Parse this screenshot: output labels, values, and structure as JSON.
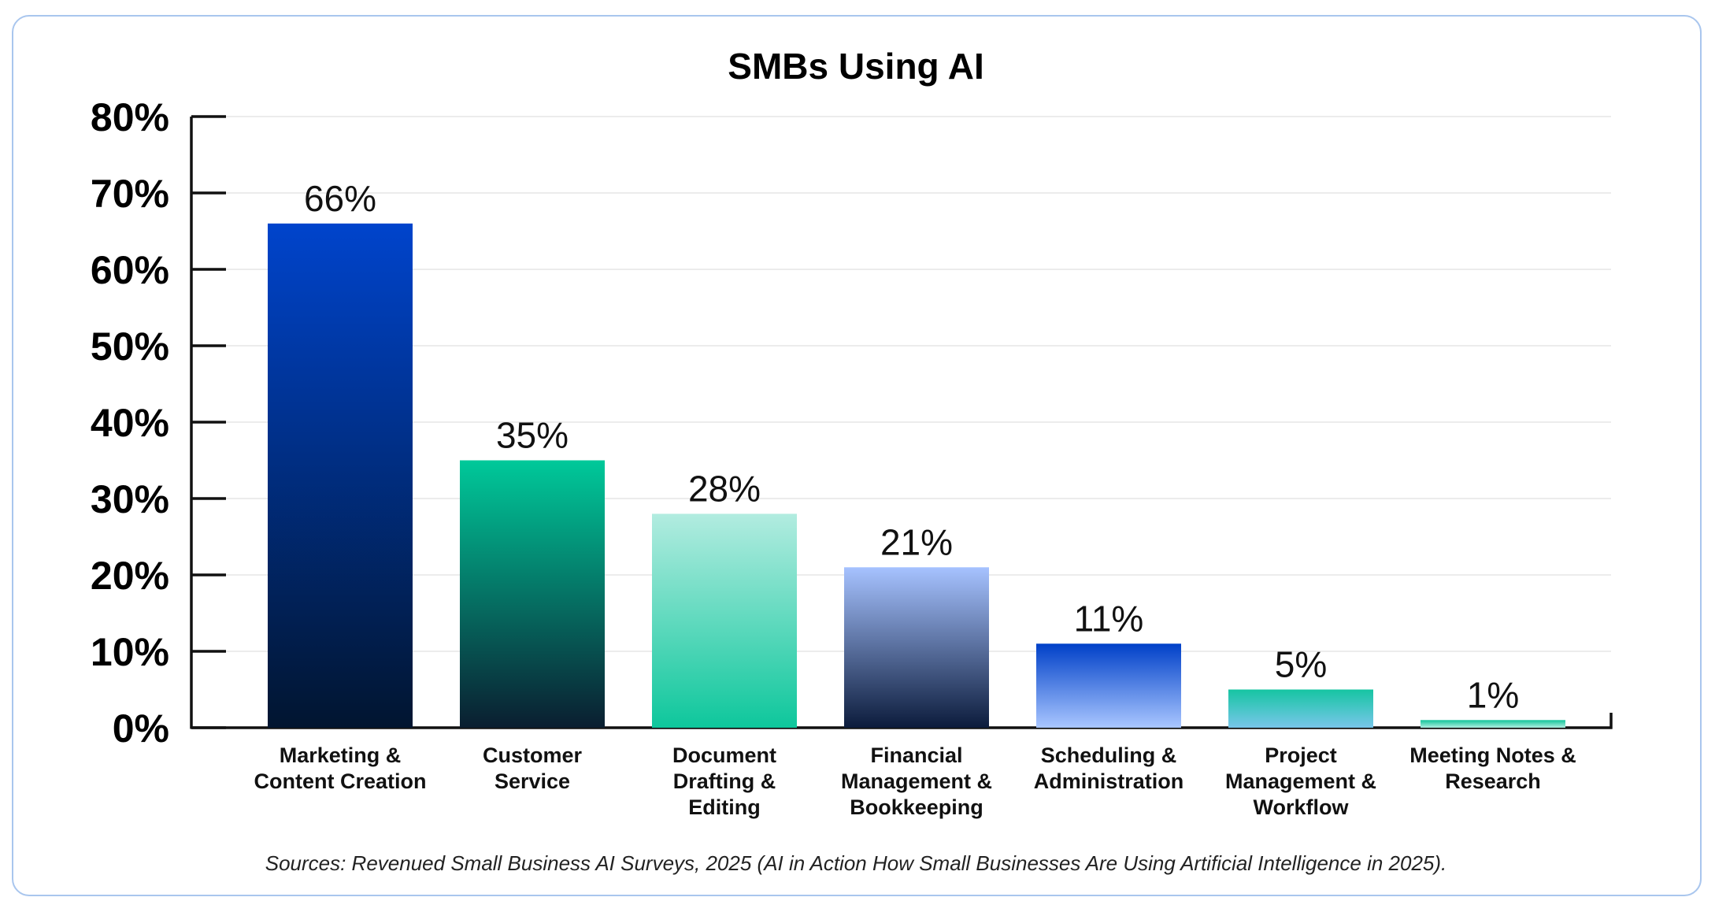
{
  "chart_data": {
    "type": "bar",
    "title": "SMBs Using AI",
    "categories": [
      [
        "Marketing &",
        "Content Creation"
      ],
      [
        "Customer",
        "Service"
      ],
      [
        "Document",
        "Drafting &",
        "Editing"
      ],
      [
        "Financial",
        "Management &",
        "Bookkeeping"
      ],
      [
        "Scheduling &",
        "Administration"
      ],
      [
        "Project",
        "Management &",
        "Workflow"
      ],
      [
        "Meeting Notes &",
        "Research"
      ]
    ],
    "values": [
      66,
      35,
      28,
      21,
      11,
      5,
      1
    ],
    "value_labels": [
      "66%",
      "35%",
      "28%",
      "21%",
      "11%",
      "5%",
      "1%"
    ],
    "ylim": [
      0,
      80
    ],
    "yticks": [
      0,
      10,
      20,
      30,
      40,
      50,
      60,
      70,
      80
    ],
    "ytick_labels": [
      "0%",
      "10%",
      "20%",
      "30%",
      "40%",
      "50%",
      "60%",
      "70%",
      "80%"
    ],
    "grid": true,
    "xlabel": "",
    "ylabel": "",
    "bar_gradients": [
      [
        "#0044cc",
        "#011530"
      ],
      [
        "#00c99a",
        "#0a1e30"
      ],
      [
        "#b2ece0",
        "#0ec79c"
      ],
      [
        "#a6c2ff",
        "#0c1c3c"
      ],
      [
        "#0040c8",
        "#a9c6ff"
      ],
      [
        "#16c5a2",
        "#78c6ea"
      ],
      [
        "#12c49a",
        "#aef0e1"
      ]
    ],
    "source": "Sources: Revenued Small Business AI Surveys, 2025 (AI in Action How Small Businesses Are Using Artificial Intelligence in 2025)."
  },
  "colors": {
    "border": "#a9c6ee",
    "grid": "#e6e6e6",
    "axis": "#111111"
  }
}
